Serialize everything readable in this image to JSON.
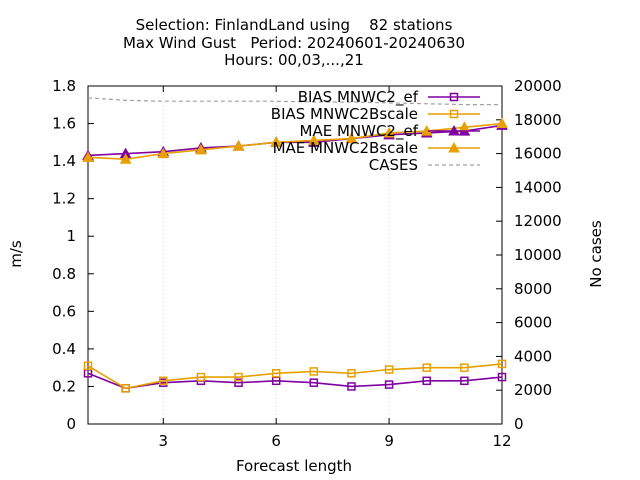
{
  "chart_data": {
    "type": "line",
    "title": [
      "Selection: FinlandLand using    82 stations",
      "Max Wind Gust   Period: 20240601-20240630",
      "Hours: 00,03,...,21"
    ],
    "xlabel": "Forecast length",
    "ylabel": "m/s",
    "y2label": "No cases",
    "xlim": [
      1,
      12
    ],
    "ylim": [
      0,
      1.8
    ],
    "y2lim": [
      0,
      20000
    ],
    "xticks": [
      3,
      6,
      9,
      12
    ],
    "yticks": [
      0,
      0.2,
      0.4,
      0.6,
      0.8,
      1,
      1.2,
      1.4,
      1.6,
      1.8
    ],
    "y2ticks": [
      0,
      2000,
      4000,
      6000,
      8000,
      10000,
      12000,
      14000,
      16000,
      18000,
      20000
    ],
    "x": [
      1,
      2,
      3,
      4,
      5,
      6,
      7,
      8,
      9,
      10,
      11,
      12
    ],
    "legend_position": "top-right",
    "series": [
      {
        "name": "BIAS MNWC2_ef",
        "legend": "BIAS MNWC2_ef",
        "color": "#8000a0",
        "marker": "square",
        "axis": "y",
        "values": [
          0.27,
          0.19,
          0.22,
          0.23,
          0.22,
          0.23,
          0.22,
          0.2,
          0.21,
          0.23,
          0.23,
          0.25
        ]
      },
      {
        "name": "BIAS MNWC2_Bscale",
        "legend": "BIAS MNWC2Bscale",
        "color": "#e8a000",
        "marker": "square",
        "axis": "y",
        "values": [
          0.31,
          0.19,
          0.23,
          0.25,
          0.25,
          0.27,
          0.28,
          0.27,
          0.29,
          0.3,
          0.3,
          0.32
        ]
      },
      {
        "name": "MAE MNWC2_ef",
        "legend": "MAE MNWC2_ef",
        "color": "#8000a0",
        "marker": "triangle",
        "axis": "y",
        "values": [
          1.43,
          1.44,
          1.45,
          1.47,
          1.48,
          1.5,
          1.5,
          1.52,
          1.54,
          1.55,
          1.56,
          1.59
        ]
      },
      {
        "name": "MAE MNWC2_Bscale",
        "legend": "MAE MNWC2Bscale",
        "color": "#e8a000",
        "marker": "triangle",
        "axis": "y",
        "values": [
          1.42,
          1.41,
          1.44,
          1.46,
          1.48,
          1.5,
          1.51,
          1.52,
          1.55,
          1.56,
          1.58,
          1.6
        ]
      },
      {
        "name": "CASES",
        "legend": "CASES",
        "color": "#a0a0a0",
        "marker": "none",
        "dash": true,
        "axis": "y2",
        "values": [
          19300,
          19150,
          19100,
          19100,
          19100,
          19100,
          19050,
          19050,
          19000,
          18950,
          18900,
          18900
        ]
      }
    ]
  }
}
